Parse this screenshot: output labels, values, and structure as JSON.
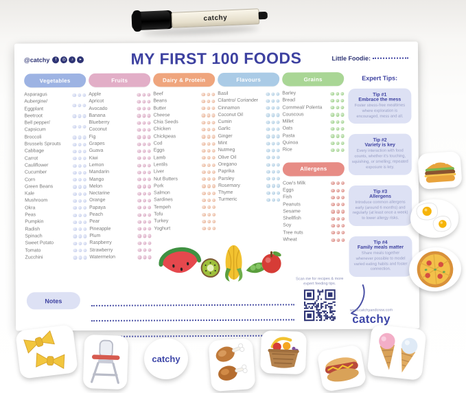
{
  "brand": {
    "name": "catchy"
  },
  "marker": {
    "brand_label": "catchy"
  },
  "poster": {
    "header": {
      "handle": "@catchy",
      "social_icons": [
        "facebook-icon",
        "instagram-icon",
        "tiktok-icon",
        "youtube-icon"
      ],
      "title": "MY FIRST 100 FOODS",
      "little_foodie_label": "Little Foodie:"
    },
    "dots_per_item": 3,
    "categories": [
      {
        "name": "Vegetables",
        "pill_color": "#9db3e3",
        "dot_color": "#cdd5ef",
        "items": [
          "Asparagus",
          "Aubergine/ Eggplant",
          "Beetroot",
          "Bell pepper/ Capsicum",
          "Broccoli",
          "Brussels Sprouts",
          "Cabbage",
          "Carrot",
          "Cauliflower",
          "Cucumber",
          "Corn",
          "Green Beans",
          "Kale",
          "Mushroom",
          "Okra",
          "Peas",
          "Pumpkin",
          "Radish",
          "Spinach",
          "Sweet Potato",
          "Tomato",
          "Zucchini"
        ]
      },
      {
        "name": "Fruits",
        "pill_color": "#e2aec7",
        "dot_color": "#dcafc7",
        "items": [
          "Apple",
          "Apricot",
          "Avocado",
          "Banana",
          "Blueberry",
          "Coconut",
          "Fig",
          "Grapes",
          "Guava",
          "Kiwi",
          "Lemon",
          "Mandarin",
          "Mango",
          "Melon",
          "Nectarine",
          "Orange",
          "Papaya",
          "Peach",
          "Pear",
          "Pineapple",
          "Plum",
          "Raspberry",
          "Strawberry",
          "Watermelon"
        ]
      },
      {
        "name": "Dairy & Protein",
        "pill_color": "#efa57d",
        "dot_color": "#ecbda4",
        "items": [
          "Beef",
          "Beans",
          "Butter",
          "Cheese",
          "Chia Seeds",
          "Chicken",
          "Chickpeas",
          "Cod",
          "Eggs",
          "Lamb",
          "Lentils",
          "Liver",
          "Nut Butters",
          "Pork",
          "Salmon",
          "Sardines",
          "Tempeh",
          "Tofu",
          "Turkey",
          "Yoghurt"
        ]
      },
      {
        "name": "Flavours",
        "pill_color": "#aacbe6",
        "dot_color": "#b5d1e5",
        "items": [
          "Basil",
          "Cilantro/ Coriander",
          "Cinnamon",
          "Coconut Oil",
          "Cumin",
          "Garlic",
          "Ginger",
          "Mint",
          "Nutmeg",
          "Olive Oil",
          "Oregano",
          "Paprika",
          "Parsley",
          "Rosemary",
          "Thyme",
          "Turmeric"
        ]
      },
      {
        "name": "Grains",
        "pill_color": "#a9d695",
        "dot_color": "#a6d494",
        "items": [
          "Barley",
          "Bread",
          "Cornmeal/ Polenta",
          "Couscous",
          "Millet",
          "Oats",
          "Pasta",
          "Quinoa",
          "Rice"
        ]
      }
    ],
    "allergens": {
      "name": "Allergens",
      "pill_color": "#e78c85",
      "dot_color": "#de948d",
      "items": [
        "Cow's Milk",
        "Eggs",
        "Fish",
        "Peanuts",
        "Sesame",
        "Shellfish",
        "Soy",
        "Tree nuts",
        "Wheat"
      ]
    },
    "expert_tips": {
      "heading": "Expert Tips:",
      "tips": [
        {
          "title": "Tip #1",
          "subtitle": "Embrace the mess",
          "body": "Foster stress-free mealtimes where exploration is encouraged, mess and all."
        },
        {
          "title": "Tip #2",
          "subtitle": "Variety is key",
          "body": "Every interaction with food counts, whether it's touching, squishing, or smelling; repeated exposure is key."
        },
        {
          "title": "Tip #3",
          "subtitle": "Allergens",
          "body": "Introduce common allergens early (around 6 months) and regularly (at least once a week) to lower allergy risks."
        },
        {
          "title": "Tip #4",
          "subtitle": "Family meals matter",
          "body": "Share meals together whenever possible to model varied eating habits and foster connection."
        }
      ]
    },
    "notes": {
      "label": "Notes",
      "line_count": 3
    },
    "qr_caption": "Scan me for recipes & more expert feeding tips.",
    "footer": {
      "website": "www.catchyandcrew.com",
      "logo_text": "catchy"
    },
    "illustrations": [
      "watermelon",
      "kiwi",
      "corn",
      "pea-pod",
      "apple"
    ]
  },
  "stickers": [
    "burger",
    "fried-eggs",
    "pizza",
    "farfalle-pasta",
    "high-chair",
    "catchy-logo",
    "fried-chicken",
    "fruit-basket",
    "hot-dog",
    "ice-cream-cones"
  ]
}
